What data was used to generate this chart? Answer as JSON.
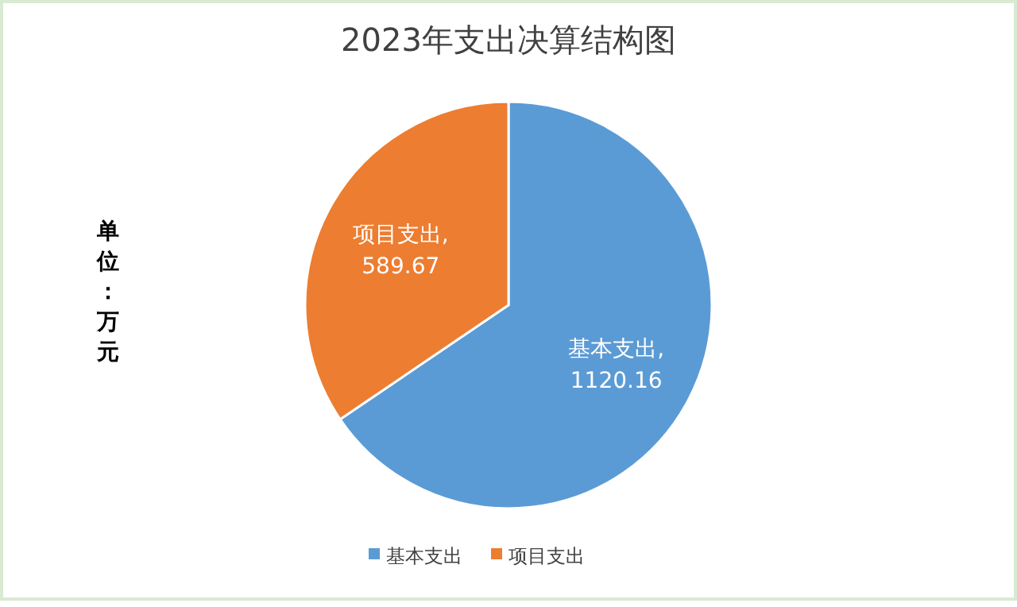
{
  "chart_data": {
    "type": "pie",
    "title": "2023年支出决算结构图",
    "categories": [
      "基本支出",
      "项目支出"
    ],
    "values": [
      1120.16,
      589.67
    ],
    "colors": [
      "#5b9bd5",
      "#ed7d31"
    ],
    "value_labels": [
      "基本支出,1120.16",
      "项目支出,589.67"
    ],
    "legend": "bottom",
    "annotations": [
      "单位：万元"
    ]
  }
}
